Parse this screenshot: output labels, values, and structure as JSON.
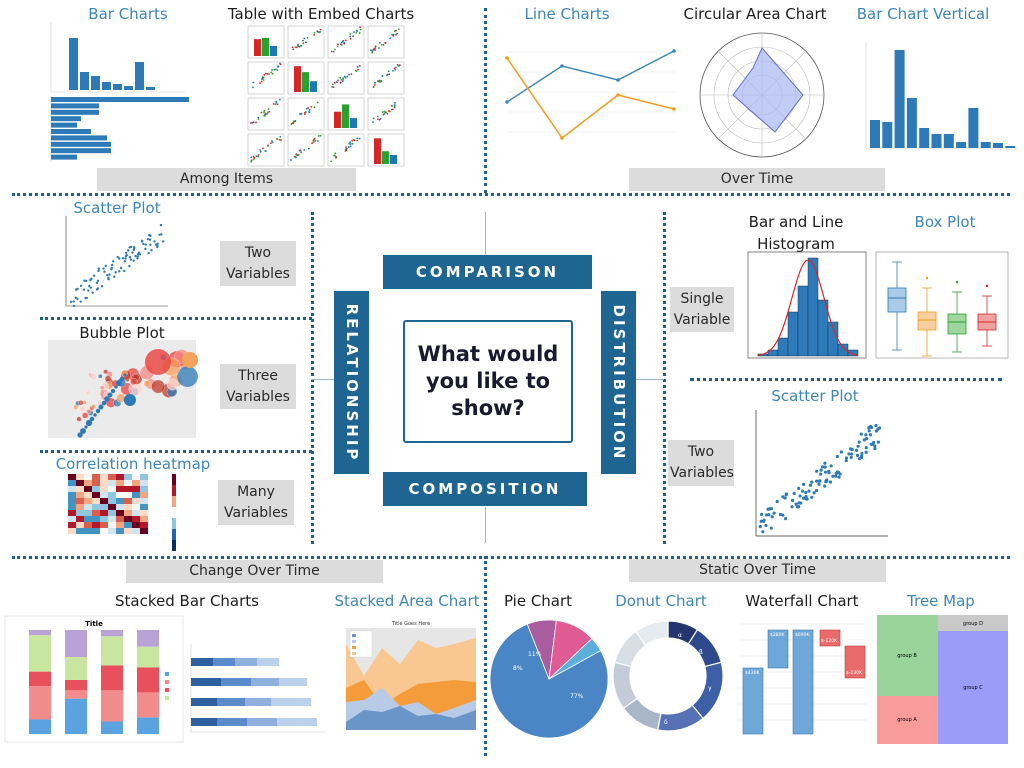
{
  "center": {
    "question": "What would you like to show?"
  },
  "categories": {
    "comparison": "COMPARISON",
    "relationship": "RELATIONSHIP",
    "distribution": "DISTRIBUTION",
    "composition": "COMPOSITION"
  },
  "comparison": {
    "among_items_label": "Among Items",
    "over_time_label": "Over Time",
    "bar_charts": "Bar Charts",
    "table_embed": "Table with Embed Charts",
    "line_charts": "Line Charts",
    "circular_area": "Circular Area Chart",
    "bar_vertical": "Bar Chart Vertical"
  },
  "relationship": {
    "scatter_plot": "Scatter Plot",
    "bubble_plot": "Bubble Plot",
    "correlation_heatmap": "Correlation heatmap",
    "two_variables": "Two Variables",
    "three_variables": "Three Variables",
    "many_variables": "Many Variables"
  },
  "distribution": {
    "bar_line_histogram": "Bar and Line Histogram",
    "box_plot": "Box Plot",
    "scatter_plot": "Scatter Plot",
    "single_variable": "Single Variable",
    "two_variables": "Two Variables"
  },
  "composition": {
    "change_over_time_label": "Change Over Time",
    "static_over_time_label": "Static Over Time",
    "stacked_bar": "Stacked Bar Charts",
    "stacked_area": "Stacked Area Chart",
    "pie_chart": "Pie Chart",
    "donut_chart": "Donut Chart",
    "waterfall_chart": "Waterfall Chart",
    "tree_map": "Tree Map"
  },
  "thumbnails": {
    "stacked_bar_title": "Title",
    "stacked_area_title": "Title Goes Here",
    "pie_labels": [
      "77%",
      "8%",
      "11%"
    ],
    "waterfall_values": [
      "$430K",
      "$280K",
      "$690K",
      "$-120K",
      "$-230K"
    ],
    "treemap_groups": [
      "group D",
      "group B",
      "group C",
      "group A"
    ],
    "donut_greek": [
      "α",
      "β",
      "γ",
      "δ"
    ]
  },
  "colors": {
    "brand_blue": "#1f6592",
    "title_blue": "#3d87b8",
    "chart_blue": "#2e7ab8",
    "label_gray": "#dcdcdc"
  }
}
